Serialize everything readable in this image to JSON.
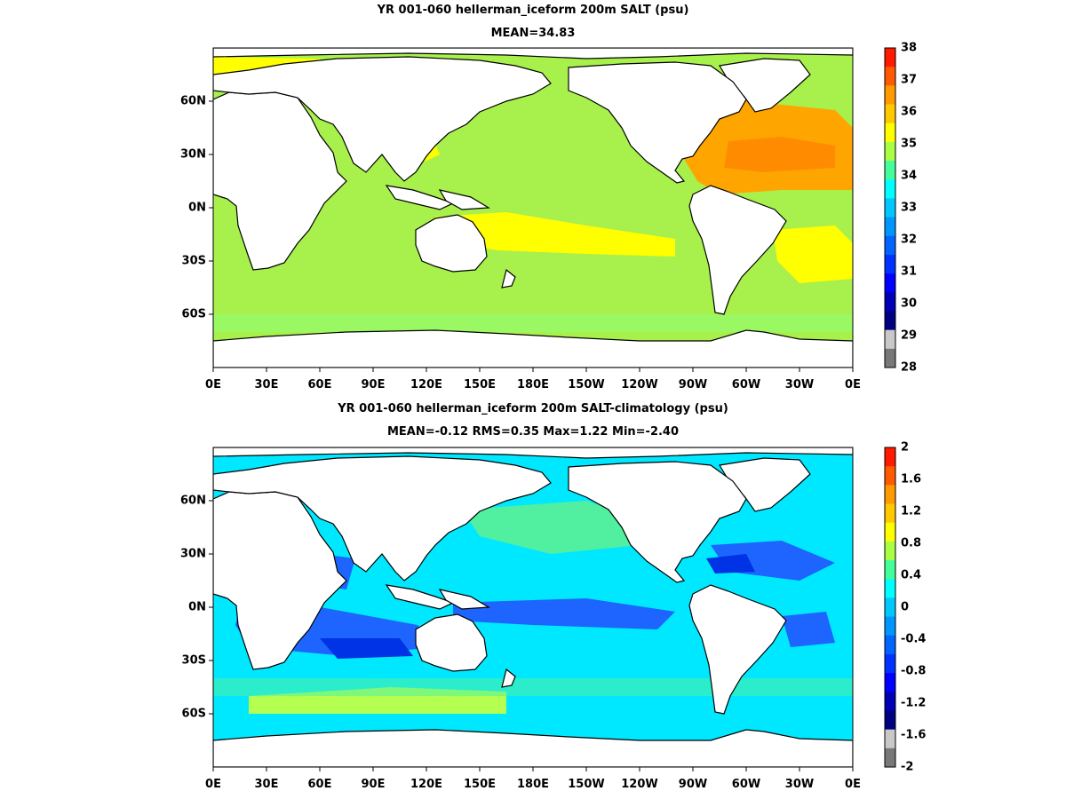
{
  "panels": [
    {
      "title": "YR 001-060 hellerman_iceform 200m SALT (psu)",
      "subtitle": "MEAN=34.83",
      "x_labels": [
        "0E",
        "30E",
        "60E",
        "90E",
        "120E",
        "150E",
        "180E",
        "150W",
        "120W",
        "90W",
        "60W",
        "30W",
        "0E"
      ],
      "y_labels": [
        "60N",
        "30N",
        "0N",
        "30S",
        "60S"
      ],
      "colorbar": {
        "labels": [
          "38",
          "37",
          "36",
          "35",
          "34",
          "33",
          "32",
          "31",
          "30",
          "29",
          "28"
        ],
        "colors": [
          "#ff1a00",
          "#ff5a00",
          "#ff9a00",
          "#ffc800",
          "#ffff00",
          "#aaff44",
          "#44ff99",
          "#00ffff",
          "#00c8ff",
          "#0096ff",
          "#0064ff",
          "#0032ff",
          "#0000ff",
          "#0000b4",
          "#000080",
          "#c8c8c8",
          "#787878"
        ]
      },
      "fields": {
        "ocean": "#a8f04c",
        "north_atlantic": "#ffa500",
        "atlantic_core": "#ff8c00",
        "subtropics": "#ffff00",
        "southern_band": "#8cff78"
      }
    },
    {
      "title": "YR 001-060 hellerman_iceform 200m SALT-climatology (psu)",
      "subtitle": "MEAN=-0.12   RMS=0.35   Max=1.22   Min=-2.40",
      "x_labels": [
        "0E",
        "30E",
        "60E",
        "90E",
        "120E",
        "150E",
        "180E",
        "150W",
        "120W",
        "90W",
        "60W",
        "30W",
        "0E"
      ],
      "y_labels": [
        "60N",
        "30N",
        "0N",
        "30S",
        "60S"
      ],
      "colorbar": {
        "labels": [
          "2",
          "1.6",
          "1.2",
          "0.8",
          "0.4",
          "0",
          "-0.4",
          "-0.8",
          "-1.2",
          "-1.6",
          "-2"
        ],
        "colors": [
          "#ff1a00",
          "#ff5a00",
          "#ff9a00",
          "#ffc800",
          "#ffff00",
          "#aaff44",
          "#44ff99",
          "#00ffff",
          "#00c8ff",
          "#0096ff",
          "#0064ff",
          "#0032ff",
          "#0000ff",
          "#0000b4",
          "#000080",
          "#c8c8c8",
          "#787878"
        ]
      },
      "fields": {
        "ocean": "#00e8ff",
        "negative": "#1e64ff",
        "strong_negative": "#0032e6",
        "positive": "#50f0a0",
        "warm": "#b4ff50"
      }
    }
  ]
}
